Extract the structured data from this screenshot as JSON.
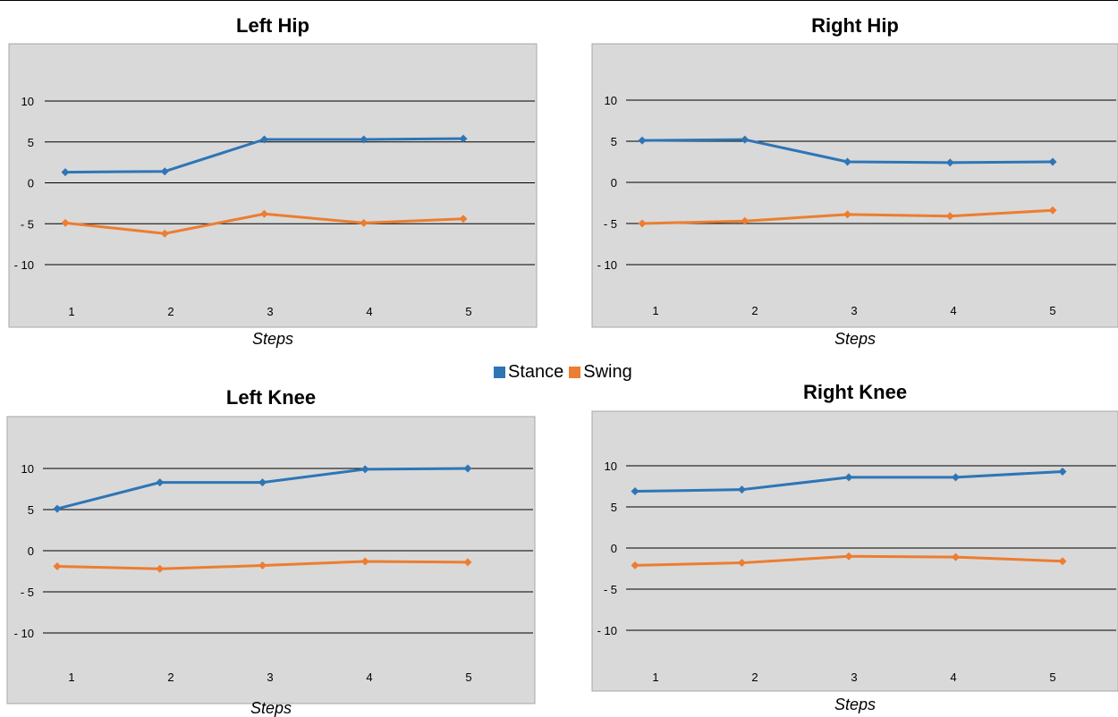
{
  "legend": [
    {
      "label": "Stance",
      "color": "#2e75b6"
    },
    {
      "label": "Swing",
      "color": "#ed7d31"
    }
  ],
  "chart_data": [
    {
      "type": "line",
      "title": "Left Hip",
      "xlabel": "Steps",
      "ylabel": "",
      "categories": [
        "1",
        "2",
        "3",
        "4",
        "5"
      ],
      "ylim": [
        -10,
        10
      ],
      "yticks": [
        "10",
        "5",
        "0",
        "- 5",
        "- 10"
      ],
      "grid": true,
      "series": [
        {
          "name": "Stance",
          "color": "#2e75b6",
          "values": [
            1.3,
            1.4,
            5.3,
            5.3,
            5.4
          ]
        },
        {
          "name": "Swing",
          "color": "#ed7d31",
          "values": [
            -4.9,
            -6.2,
            -3.8,
            -4.9,
            -4.4
          ]
        }
      ]
    },
    {
      "type": "line",
      "title": "Right Hip",
      "xlabel": "Steps",
      "ylabel": "",
      "categories": [
        "1",
        "2",
        "3",
        "4",
        "5"
      ],
      "ylim": [
        -10,
        10
      ],
      "yticks": [
        "10",
        "5",
        "0",
        "- 5",
        "- 10"
      ],
      "grid": true,
      "series": [
        {
          "name": "Stance",
          "color": "#2e75b6",
          "values": [
            5.1,
            5.2,
            2.5,
            2.4,
            2.5
          ]
        },
        {
          "name": "Swing",
          "color": "#ed7d31",
          "values": [
            -5.0,
            -4.7,
            -3.9,
            -4.1,
            -3.4
          ]
        }
      ]
    },
    {
      "type": "line",
      "title": "Left Knee",
      "xlabel": "Steps",
      "ylabel": "",
      "categories": [
        "1",
        "2",
        "3",
        "4",
        "5"
      ],
      "ylim": [
        -10,
        10
      ],
      "yticks": [
        "10",
        "5",
        "0",
        "- 5",
        "- 10"
      ],
      "grid": true,
      "series": [
        {
          "name": "Stance",
          "color": "#2e75b6",
          "values": [
            5.1,
            8.3,
            8.3,
            9.9,
            10.0
          ]
        },
        {
          "name": "Swing",
          "color": "#ed7d31",
          "values": [
            -1.9,
            -2.2,
            -1.8,
            -1.3,
            -1.4
          ]
        }
      ]
    },
    {
      "type": "line",
      "title": "Right Knee",
      "xlabel": "Steps",
      "ylabel": "",
      "categories": [
        "1",
        "2",
        "3",
        "4",
        "5"
      ],
      "ylim": [
        -10,
        10
      ],
      "yticks": [
        "10",
        "5",
        "0",
        "- 5",
        "- 10"
      ],
      "grid": true,
      "series": [
        {
          "name": "Stance",
          "color": "#2e75b6",
          "values": [
            6.9,
            7.1,
            8.6,
            8.6,
            9.3
          ]
        },
        {
          "name": "Swing",
          "color": "#ed7d31",
          "values": [
            -2.1,
            -1.8,
            -1.0,
            -1.1,
            -1.6
          ]
        }
      ]
    }
  ]
}
